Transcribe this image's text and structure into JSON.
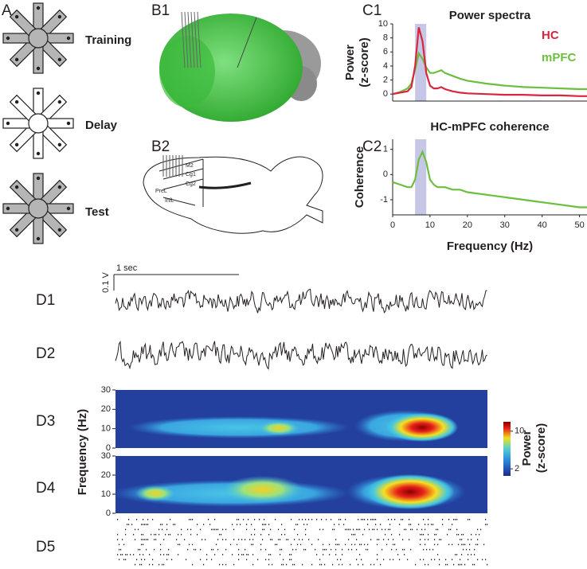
{
  "panels": {
    "a": {
      "label": "A",
      "stages": [
        "Training",
        "Delay",
        "Test"
      ]
    },
    "b1": {
      "label": "B1"
    },
    "b2": {
      "label": "B2",
      "regions": [
        "M2",
        "Cg1",
        "Cg2",
        "PreL",
        "InfL"
      ]
    },
    "c1": {
      "label": "C1"
    },
    "c2": {
      "label": "C2"
    },
    "d1": {
      "label": "D1",
      "time_scale": "1 sec",
      "voltage_scale": "0.1 V"
    },
    "d2": {
      "label": "D2"
    },
    "d3": {
      "label": "D3"
    },
    "d4": {
      "label": "D4"
    },
    "d5": {
      "label": "D5"
    }
  },
  "spectrograms": {
    "y_label": "Frequency (Hz)",
    "ylim": [
      0,
      30
    ],
    "yticks": [
      0,
      10,
      20,
      30
    ],
    "colorbar": {
      "label": [
        "Power",
        "(z-score)"
      ],
      "lim": [
        0.5,
        12
      ],
      "ticks": [
        2,
        10
      ]
    }
  },
  "chart_data": [
    {
      "type": "line",
      "title": "Power spectra",
      "y_label": [
        "Power",
        "(z-score)"
      ],
      "x": [
        0,
        2,
        4,
        5,
        6,
        7,
        8,
        9,
        10,
        11,
        12,
        13,
        14,
        16,
        18,
        20,
        25,
        30,
        35,
        40,
        45,
        50,
        52
      ],
      "xlim": [
        0,
        52
      ],
      "ylim": [
        -1,
        10
      ],
      "yticks": [
        0,
        2,
        4,
        6,
        8,
        10
      ],
      "highlight": [
        6,
        9
      ],
      "series": [
        {
          "name": "HC",
          "color": "#d7263d",
          "values": [
            0,
            0.2,
            0.4,
            1,
            4,
            9.5,
            7.5,
            3,
            1.2,
            0.8,
            0.8,
            1,
            0.7,
            0.4,
            0.2,
            0.1,
            0,
            -0.1,
            -0.1,
            -0.2,
            -0.2,
            -0.3,
            -0.3
          ]
        },
        {
          "name": "mPFC",
          "color": "#6cbf3e",
          "values": [
            0,
            0.3,
            0.8,
            1.5,
            3.5,
            5.8,
            5,
            3.8,
            3,
            3,
            3.2,
            3.4,
            3,
            2.6,
            2.2,
            1.9,
            1.5,
            1.2,
            1,
            0.9,
            0.8,
            0.7,
            0.7
          ]
        }
      ]
    },
    {
      "type": "line",
      "title": "HC-mPFC coherence",
      "y_label": [
        "Coherence"
      ],
      "x_label": "Frequency (Hz)",
      "x": [
        0,
        2,
        4,
        5,
        6,
        7,
        8,
        9,
        10,
        11,
        12,
        13,
        14,
        16,
        18,
        20,
        25,
        30,
        35,
        40,
        45,
        50,
        52
      ],
      "xlim": [
        0,
        52
      ],
      "ylim": [
        -1.6,
        1.4
      ],
      "xticks": [
        0,
        10,
        20,
        30,
        40,
        50
      ],
      "yticks": [
        -1,
        0,
        1
      ],
      "highlight": [
        6,
        9
      ],
      "color": "#6cbf3e",
      "values": [
        -0.3,
        -0.4,
        -0.5,
        -0.5,
        -0.2,
        0.6,
        0.9,
        0.5,
        -0.2,
        -0.4,
        -0.5,
        -0.5,
        -0.5,
        -0.6,
        -0.6,
        -0.7,
        -0.8,
        -0.9,
        -1,
        -1.1,
        -1.2,
        -1.3,
        -1.3
      ]
    }
  ]
}
